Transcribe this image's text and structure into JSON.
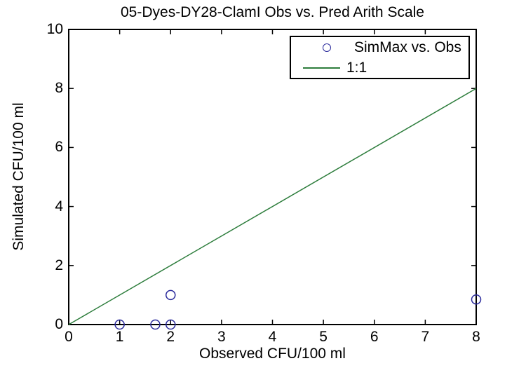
{
  "chart_data": {
    "type": "scatter",
    "title": "05-Dyes-DY28-ClamI Obs vs. Pred Arith Scale",
    "xlabel": "Observed CFU/100 ml",
    "ylabel": "Simulated CFU/100 ml",
    "xlim": [
      0,
      8
    ],
    "ylim": [
      0,
      10
    ],
    "x_ticks": [
      0,
      1,
      2,
      3,
      4,
      5,
      6,
      7,
      8
    ],
    "y_ticks": [
      0,
      2,
      4,
      6,
      8,
      10
    ],
    "grid": false,
    "background_color": "#ffffff",
    "axis_color": "#000000",
    "legend_position": "top-right",
    "series": [
      {
        "name": "SimMax vs. Obs",
        "type": "scatter",
        "marker": "open-circle",
        "color": "#2a2a9c",
        "points": [
          [
            1.0,
            0
          ],
          [
            1.7,
            0
          ],
          [
            2.0,
            0
          ],
          [
            2.0,
            1.0
          ],
          [
            8.0,
            0.85
          ]
        ]
      },
      {
        "name": "1:1",
        "type": "line",
        "color": "#2d7d3c",
        "points": [
          [
            0,
            0
          ],
          [
            8,
            8
          ]
        ]
      }
    ]
  }
}
